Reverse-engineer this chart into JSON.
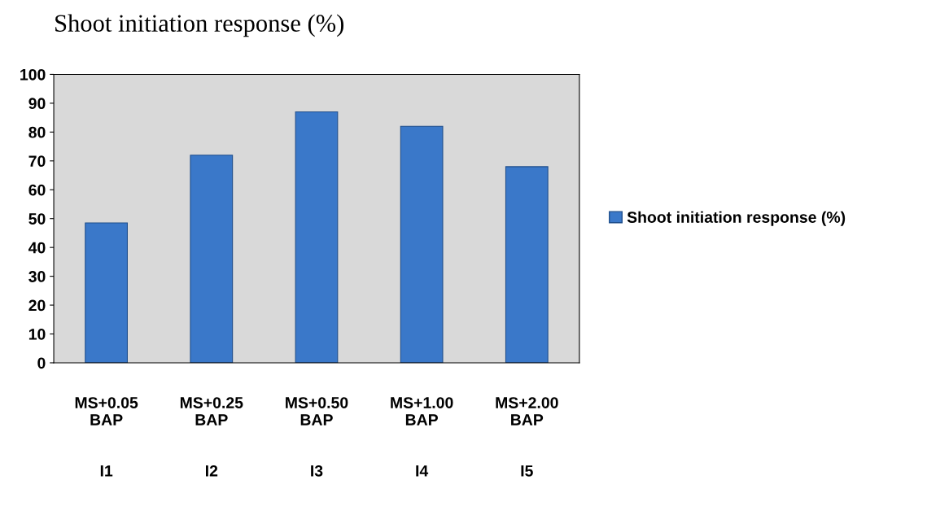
{
  "chart_data": {
    "type": "bar",
    "title": "Shoot initiation response (%)",
    "categories": [
      "MS+0.05\nBAP\n\n\nI1",
      "MS+0.25\nBAP\n\n\nI2",
      "MS+0.50\nBAP\n\n\nI3",
      "MS+1.00\nBAP\n\n\nI4",
      "MS+2.00\nBAP\n\n\nI5"
    ],
    "series": [
      {
        "name": "Shoot initiation response (%)",
        "color": "#3a78c9",
        "values": [
          48.5,
          72,
          87,
          82,
          68
        ]
      }
    ],
    "ylim": [
      0,
      100
    ],
    "yticks": [
      0,
      10,
      20,
      30,
      40,
      50,
      60,
      70,
      80,
      90,
      100
    ],
    "grid": false,
    "legend": "right"
  }
}
